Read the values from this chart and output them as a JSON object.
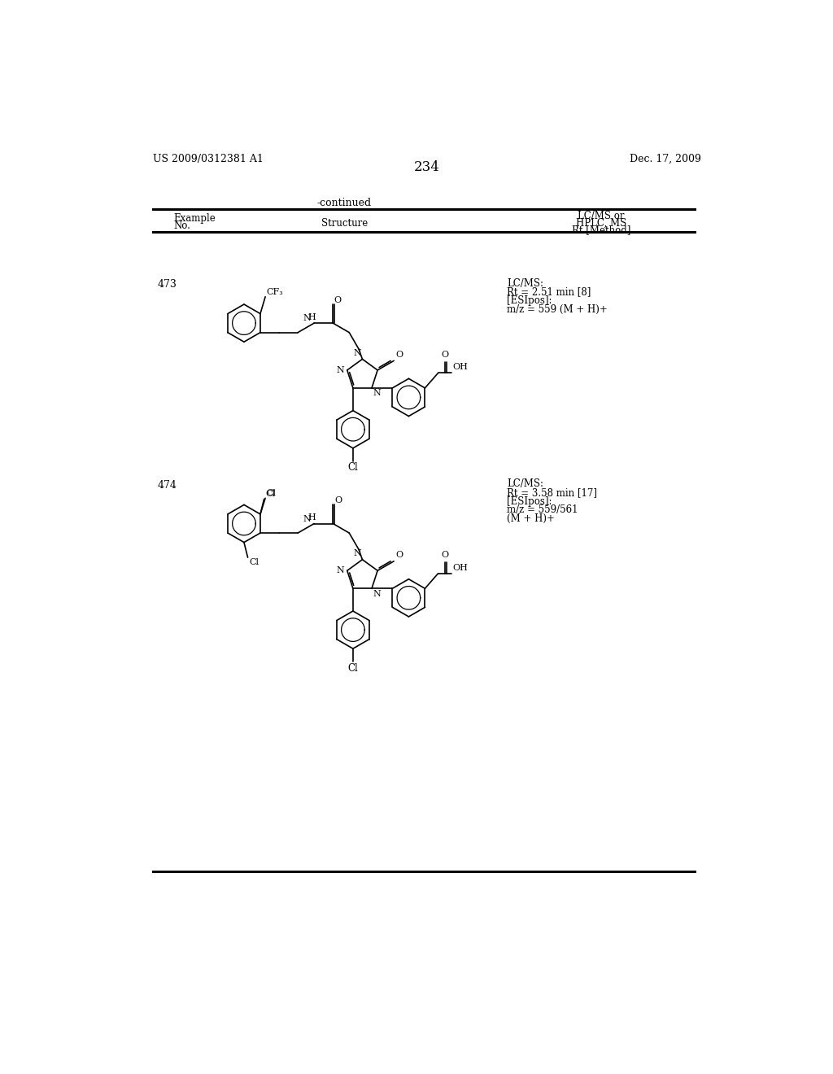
{
  "page_number": "234",
  "patent_number": "US 2009/0312381 A1",
  "patent_date": "Dec. 17, 2009",
  "continued_label": "-continued",
  "table_header_line1": "LC/MS or",
  "table_header_line2": "HPLC, MS",
  "col1_header_line1": "Example",
  "col1_header_line2": "No.",
  "col2_header": "Structure",
  "col3_header": "Rt [Method]",
  "example_473_no": "473",
  "example_473_data_line1": "LC/MS:",
  "example_473_data_line2": "Rt = 2.51 min [8]",
  "example_473_data_line3": "[ESIpos]:",
  "example_473_data_line4": "m/z = 559 (M + H)+",
  "example_474_no": "474",
  "example_474_data_line1": "LC/MS:",
  "example_474_data_line2": "Rt = 3.58 min [17]",
  "example_474_data_line3": "[ESIpos]:",
  "example_474_data_line4": "m/z = 559/561",
  "example_474_data_line5": "(M + H)+",
  "bg_color": "#ffffff",
  "text_color": "#000000"
}
